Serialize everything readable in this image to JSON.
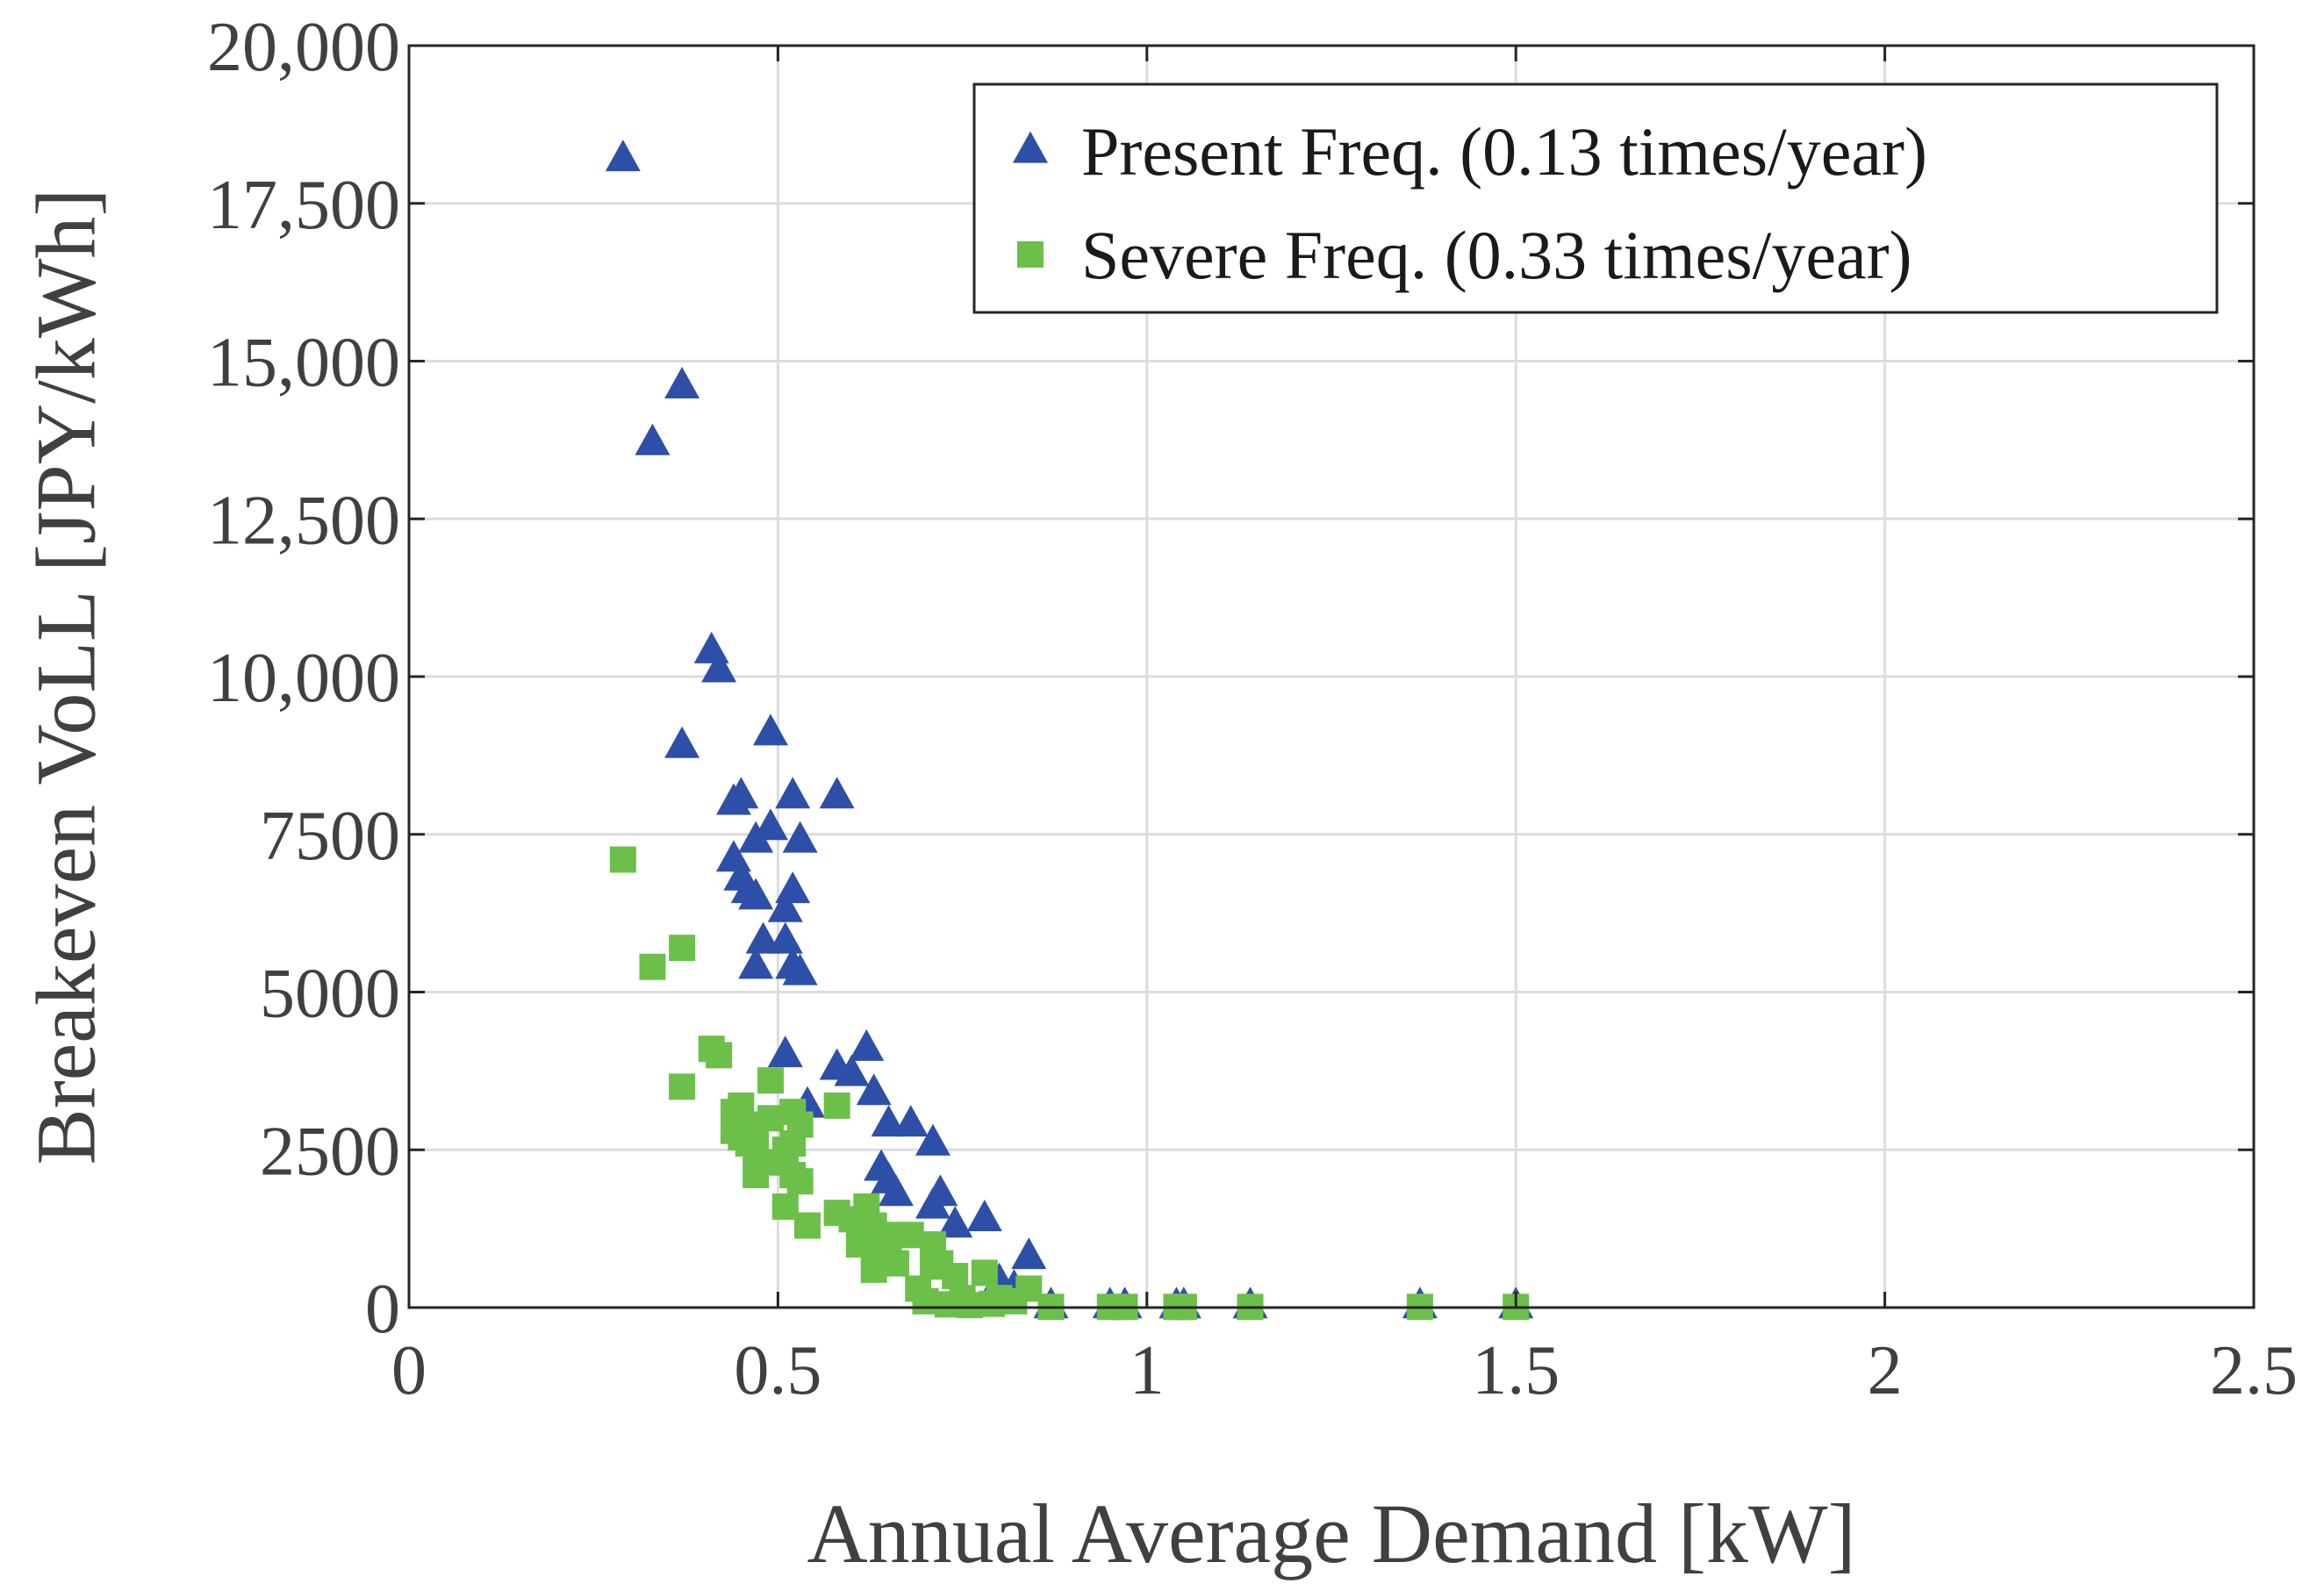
{
  "chart_data": {
    "type": "scatter",
    "title": "",
    "xlabel": "Annual Average Demand [kW]",
    "ylabel": "Breakeven VoLL [JPY/kWh]",
    "xlim": [
      0,
      2.5
    ],
    "ylim": [
      0,
      20000
    ],
    "x_ticks": [
      0,
      0.5,
      1,
      1.5,
      2,
      2.5
    ],
    "x_tick_labels": [
      "0",
      "0.5",
      "1",
      "1.5",
      "2",
      "2.5"
    ],
    "y_ticks": [
      0,
      2500,
      5000,
      7500,
      10000,
      12500,
      15000,
      17500,
      20000
    ],
    "y_tick_labels": [
      "0",
      "2500",
      "5000",
      "7500",
      "10,000",
      "12,500",
      "15,000",
      "17,500",
      "20,000"
    ],
    "grid": true,
    "legend_position": "top-right",
    "series": [
      {
        "name": "Present Freq. (0.13 times/year)",
        "marker": "triangle",
        "color": "#2e4fa8",
        "points": [
          [
            0.29,
            18200
          ],
          [
            0.37,
            14600
          ],
          [
            0.33,
            13700
          ],
          [
            0.41,
            10400
          ],
          [
            0.42,
            10100
          ],
          [
            0.37,
            8900
          ],
          [
            0.49,
            9100
          ],
          [
            0.44,
            8000
          ],
          [
            0.45,
            8100
          ],
          [
            0.52,
            8100
          ],
          [
            0.58,
            8100
          ],
          [
            0.49,
            7600
          ],
          [
            0.47,
            7400
          ],
          [
            0.53,
            7400
          ],
          [
            0.44,
            7100
          ],
          [
            0.45,
            6800
          ],
          [
            0.46,
            6600
          ],
          [
            0.52,
            6600
          ],
          [
            0.47,
            6500
          ],
          [
            0.51,
            6300
          ],
          [
            0.48,
            5800
          ],
          [
            0.51,
            5800
          ],
          [
            0.47,
            5400
          ],
          [
            0.52,
            5400
          ],
          [
            0.53,
            5300
          ],
          [
            0.51,
            4000
          ],
          [
            0.62,
            4100
          ],
          [
            0.58,
            3800
          ],
          [
            0.6,
            3700
          ],
          [
            0.63,
            3400
          ],
          [
            0.54,
            3200
          ],
          [
            0.65,
            2900
          ],
          [
            0.68,
            2900
          ],
          [
            0.71,
            2600
          ],
          [
            0.64,
            2200
          ],
          [
            0.65,
            2000
          ],
          [
            0.66,
            1800
          ],
          [
            0.72,
            1800
          ],
          [
            0.71,
            1600
          ],
          [
            0.74,
            1300
          ],
          [
            0.78,
            1400
          ],
          [
            0.84,
            800
          ],
          [
            0.8,
            400
          ],
          [
            0.82,
            300
          ],
          [
            0.87,
            20
          ],
          [
            0.95,
            20
          ],
          [
            0.97,
            20
          ],
          [
            1.04,
            20
          ],
          [
            1.05,
            20
          ],
          [
            1.14,
            20
          ],
          [
            1.37,
            20
          ],
          [
            1.5,
            20
          ]
        ]
      },
      {
        "name": "Severe Freq. (0.33 times/year)",
        "marker": "square",
        "color": "#6cc04a",
        "points": [
          [
            0.29,
            7100
          ],
          [
            0.37,
            5700
          ],
          [
            0.33,
            5400
          ],
          [
            0.41,
            4100
          ],
          [
            0.42,
            4000
          ],
          [
            0.37,
            3500
          ],
          [
            0.49,
            3600
          ],
          [
            0.44,
            3100
          ],
          [
            0.45,
            3200
          ],
          [
            0.52,
            3100
          ],
          [
            0.58,
            3200
          ],
          [
            0.49,
            3000
          ],
          [
            0.47,
            2900
          ],
          [
            0.53,
            2900
          ],
          [
            0.44,
            2800
          ],
          [
            0.45,
            2700
          ],
          [
            0.46,
            2600
          ],
          [
            0.52,
            2600
          ],
          [
            0.47,
            2500
          ],
          [
            0.51,
            2500
          ],
          [
            0.48,
            2300
          ],
          [
            0.51,
            2300
          ],
          [
            0.47,
            2100
          ],
          [
            0.52,
            2100
          ],
          [
            0.53,
            2000
          ],
          [
            0.51,
            1600
          ],
          [
            0.62,
            1600
          ],
          [
            0.58,
            1500
          ],
          [
            0.6,
            1400
          ],
          [
            0.63,
            1300
          ],
          [
            0.54,
            1300
          ],
          [
            0.65,
            1150
          ],
          [
            0.68,
            1150
          ],
          [
            0.71,
            1000
          ],
          [
            0.64,
            900
          ],
          [
            0.65,
            800
          ],
          [
            0.66,
            700
          ],
          [
            0.72,
            700
          ],
          [
            0.71,
            650
          ],
          [
            0.74,
            500
          ],
          [
            0.78,
            550
          ],
          [
            0.84,
            300
          ],
          [
            0.8,
            150
          ],
          [
            0.82,
            100
          ],
          [
            0.87,
            10
          ],
          [
            0.95,
            10
          ],
          [
            0.97,
            10
          ],
          [
            1.04,
            10
          ],
          [
            1.05,
            10
          ],
          [
            1.14,
            10
          ],
          [
            1.37,
            10
          ],
          [
            1.5,
            10
          ],
          [
            0.7,
            100
          ],
          [
            0.73,
            50
          ],
          [
            0.76,
            40
          ],
          [
            0.63,
            600
          ],
          [
            0.61,
            1000
          ],
          [
            0.69,
            300
          ],
          [
            0.75,
            150
          ],
          [
            0.79,
            60
          ]
        ]
      }
    ]
  }
}
